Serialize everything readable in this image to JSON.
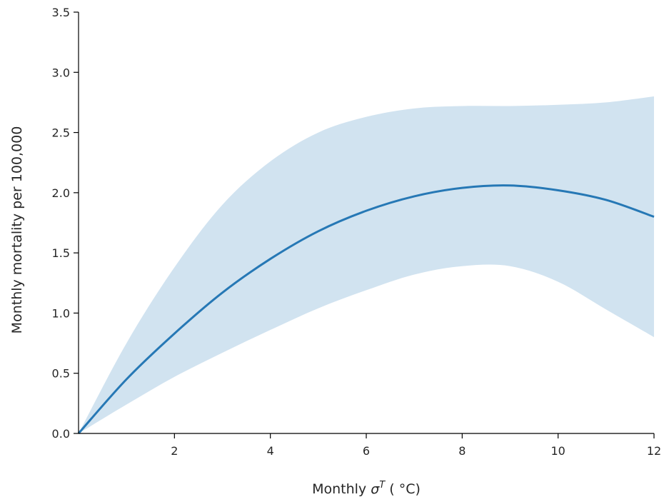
{
  "chart_data": {
    "type": "line",
    "title": "",
    "xlabel_prefix": "Monthly ",
    "xlabel_symbol": "σ",
    "xlabel_superscript": "T",
    "xlabel_suffix": " ( °C)",
    "ylabel": "Monthly mortality per 100,000",
    "xlim": [
      0,
      12
    ],
    "ylim": [
      0,
      3.5
    ],
    "xticks": [
      2,
      4,
      6,
      8,
      10,
      12
    ],
    "yticks": [
      0.0,
      0.5,
      1.0,
      1.5,
      2.0,
      2.5,
      3.0,
      3.5
    ],
    "xtick_labels": [
      "2",
      "4",
      "6",
      "8",
      "10",
      "12"
    ],
    "ytick_labels": [
      "0.0",
      "0.5",
      "1.0",
      "1.5",
      "2.0",
      "2.5",
      "3.0",
      "3.5"
    ],
    "grid": false,
    "line_color": "#2678b5",
    "band_color": "#d1e3f0",
    "series": [
      {
        "x": [
          0,
          1,
          2,
          3,
          4,
          5,
          6,
          7,
          8,
          9,
          10,
          11,
          12
        ],
        "y": [
          0.0,
          0.45,
          0.83,
          1.17,
          1.45,
          1.68,
          1.85,
          1.97,
          2.04,
          2.06,
          2.02,
          1.94,
          1.8
        ],
        "lower": [
          0.0,
          0.24,
          0.47,
          0.67,
          0.86,
          1.04,
          1.19,
          1.32,
          1.39,
          1.39,
          1.26,
          1.03,
          0.8
        ],
        "upper": [
          0.0,
          0.75,
          1.38,
          1.9,
          2.26,
          2.5,
          2.63,
          2.7,
          2.72,
          2.72,
          2.73,
          2.75,
          2.8
        ]
      }
    ]
  }
}
